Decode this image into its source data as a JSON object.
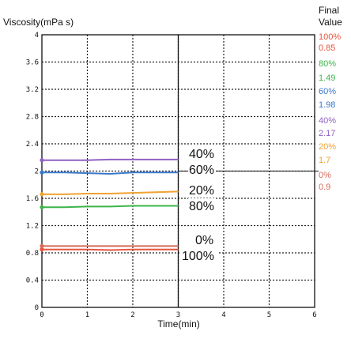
{
  "chart_data": {
    "type": "line",
    "ylabel": "Viscosity(mPa s)",
    "xlabel": "Time(min)",
    "xlim": [
      0,
      6
    ],
    "ylim": [
      0,
      4
    ],
    "x_ticks": [
      "0",
      "1",
      "2",
      "3",
      "4",
      "5",
      "6"
    ],
    "y_ticks": [
      "0",
      "0.4",
      "0.8",
      "1.2",
      "1.6",
      "2",
      "2.4",
      "2.8",
      "3.2",
      "3.6",
      "4"
    ],
    "grid": true,
    "series": [
      {
        "name": "100%",
        "color": "#e8533a",
        "x": [
          0,
          0.5,
          1,
          1.5,
          2,
          2.5,
          3
        ],
        "values": [
          0.85,
          0.85,
          0.85,
          0.84,
          0.85,
          0.85,
          0.85
        ]
      },
      {
        "name": "0%",
        "color": "#d66a5a",
        "x": [
          0,
          0.5,
          1,
          1.5,
          2,
          2.5,
          3
        ],
        "values": [
          0.9,
          0.9,
          0.9,
          0.9,
          0.9,
          0.9,
          0.9
        ]
      },
      {
        "name": "80%",
        "color": "#3cb54a",
        "x": [
          0,
          0.5,
          1,
          1.5,
          2,
          2.5,
          3
        ],
        "values": [
          1.47,
          1.47,
          1.48,
          1.48,
          1.49,
          1.49,
          1.49
        ]
      },
      {
        "name": "20%",
        "color": "#f0a232",
        "x": [
          0,
          0.5,
          1,
          1.5,
          2,
          2.5,
          3
        ],
        "values": [
          1.66,
          1.66,
          1.67,
          1.67,
          1.68,
          1.69,
          1.7
        ]
      },
      {
        "name": "60%",
        "color": "#3a78c9",
        "x": [
          0,
          0.5,
          1,
          1.5,
          2,
          2.5,
          3
        ],
        "values": [
          1.98,
          1.98,
          1.97,
          1.96,
          1.98,
          1.98,
          1.98
        ]
      },
      {
        "name": "40%",
        "color": "#9161c4",
        "x": [
          0,
          0.5,
          1,
          1.5,
          2,
          2.5,
          3
        ],
        "values": [
          2.16,
          2.16,
          2.16,
          2.17,
          2.17,
          2.17,
          2.17
        ]
      }
    ],
    "final_value_panel": {
      "title_lines": [
        "Final",
        "Value"
      ],
      "entries": [
        {
          "pct": "100%",
          "value": "0.85",
          "color": "#e8533a"
        },
        {
          "pct": "80%",
          "value": "1.49",
          "color": "#3cb54a"
        },
        {
          "pct": "60%",
          "value": "1.98",
          "color": "#3a78c9"
        },
        {
          "pct": "40%",
          "value": "2.17",
          "color": "#9161c4"
        },
        {
          "pct": "20%",
          "value": "1.7",
          "color": "#f0a232"
        },
        {
          "pct": "0%",
          "value": "0.9",
          "color": "#d66a5a"
        }
      ]
    },
    "annotations": [
      "40%",
      "60%",
      "20%",
      "80%",
      "0%",
      "100%"
    ]
  }
}
